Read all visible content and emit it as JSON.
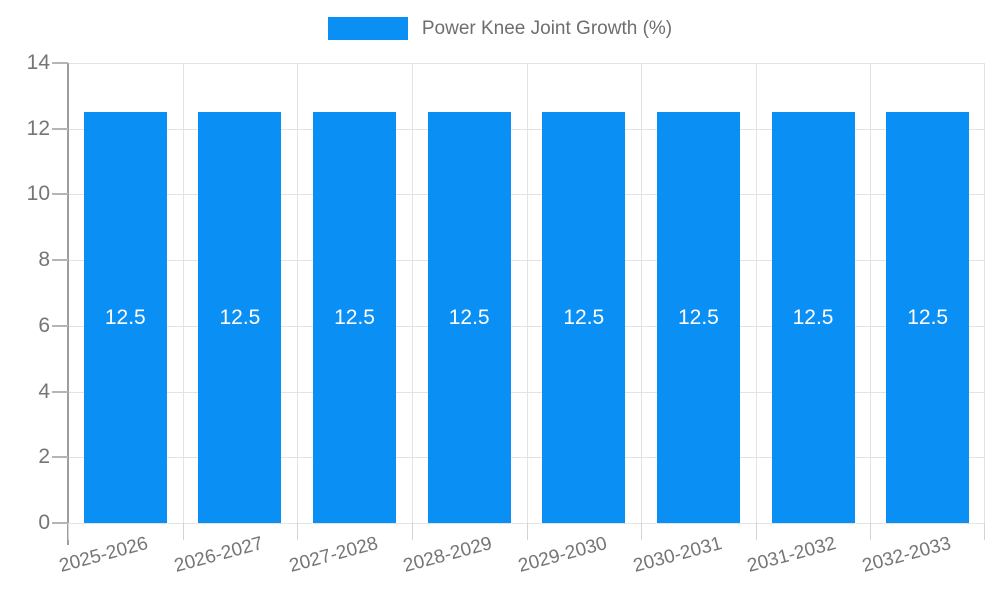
{
  "chart_data": {
    "type": "bar",
    "legend": {
      "position": "top",
      "label": "Power Knee Joint Growth (%)"
    },
    "categories": [
      "2025-2026",
      "2026-2027",
      "2027-2028",
      "2028-2029",
      "2029-2030",
      "2030-2031",
      "2031-2032",
      "2032-2033"
    ],
    "values": [
      12.5,
      12.5,
      12.5,
      12.5,
      12.5,
      12.5,
      12.5,
      12.5
    ],
    "bar_labels": [
      "12.5",
      "12.5",
      "12.5",
      "12.5",
      "12.5",
      "12.5",
      "12.5",
      "12.5"
    ],
    "ylim": [
      0,
      14
    ],
    "yticks": [
      0,
      2,
      4,
      6,
      8,
      10,
      12,
      14
    ],
    "grid": true,
    "colors": {
      "bar": "#0a8ff5",
      "grid": "#e3e3e3",
      "axis": "#9e9e9e",
      "tick_label": "#757575",
      "legend_label": "#6e6e6e",
      "data_label": "#ffffff",
      "background": "#ffffff"
    }
  }
}
